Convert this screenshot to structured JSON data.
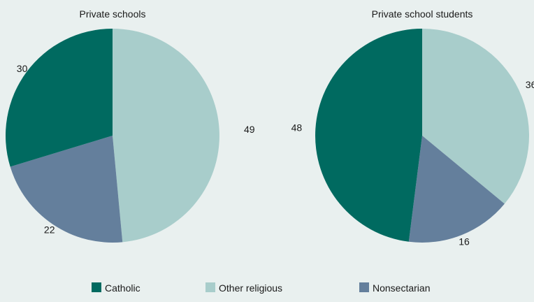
{
  "chart_data": [
    {
      "type": "pie",
      "title": "Private schools",
      "categories": [
        "Catholic",
        "Other religious",
        "Nonsectarian"
      ],
      "values": [
        30,
        49,
        22
      ]
    },
    {
      "type": "pie",
      "title": "Private school students",
      "categories": [
        "Catholic",
        "Other religious",
        "Nonsectarian"
      ],
      "values": [
        48,
        36,
        16
      ]
    }
  ],
  "legend": {
    "placement": "bottom",
    "items": [
      {
        "label": "Catholic",
        "color": "#006a60"
      },
      {
        "label": "Other religious",
        "color": "#a8cdcb"
      },
      {
        "label": "Nonsectarian",
        "color": "#647f9c"
      }
    ]
  }
}
